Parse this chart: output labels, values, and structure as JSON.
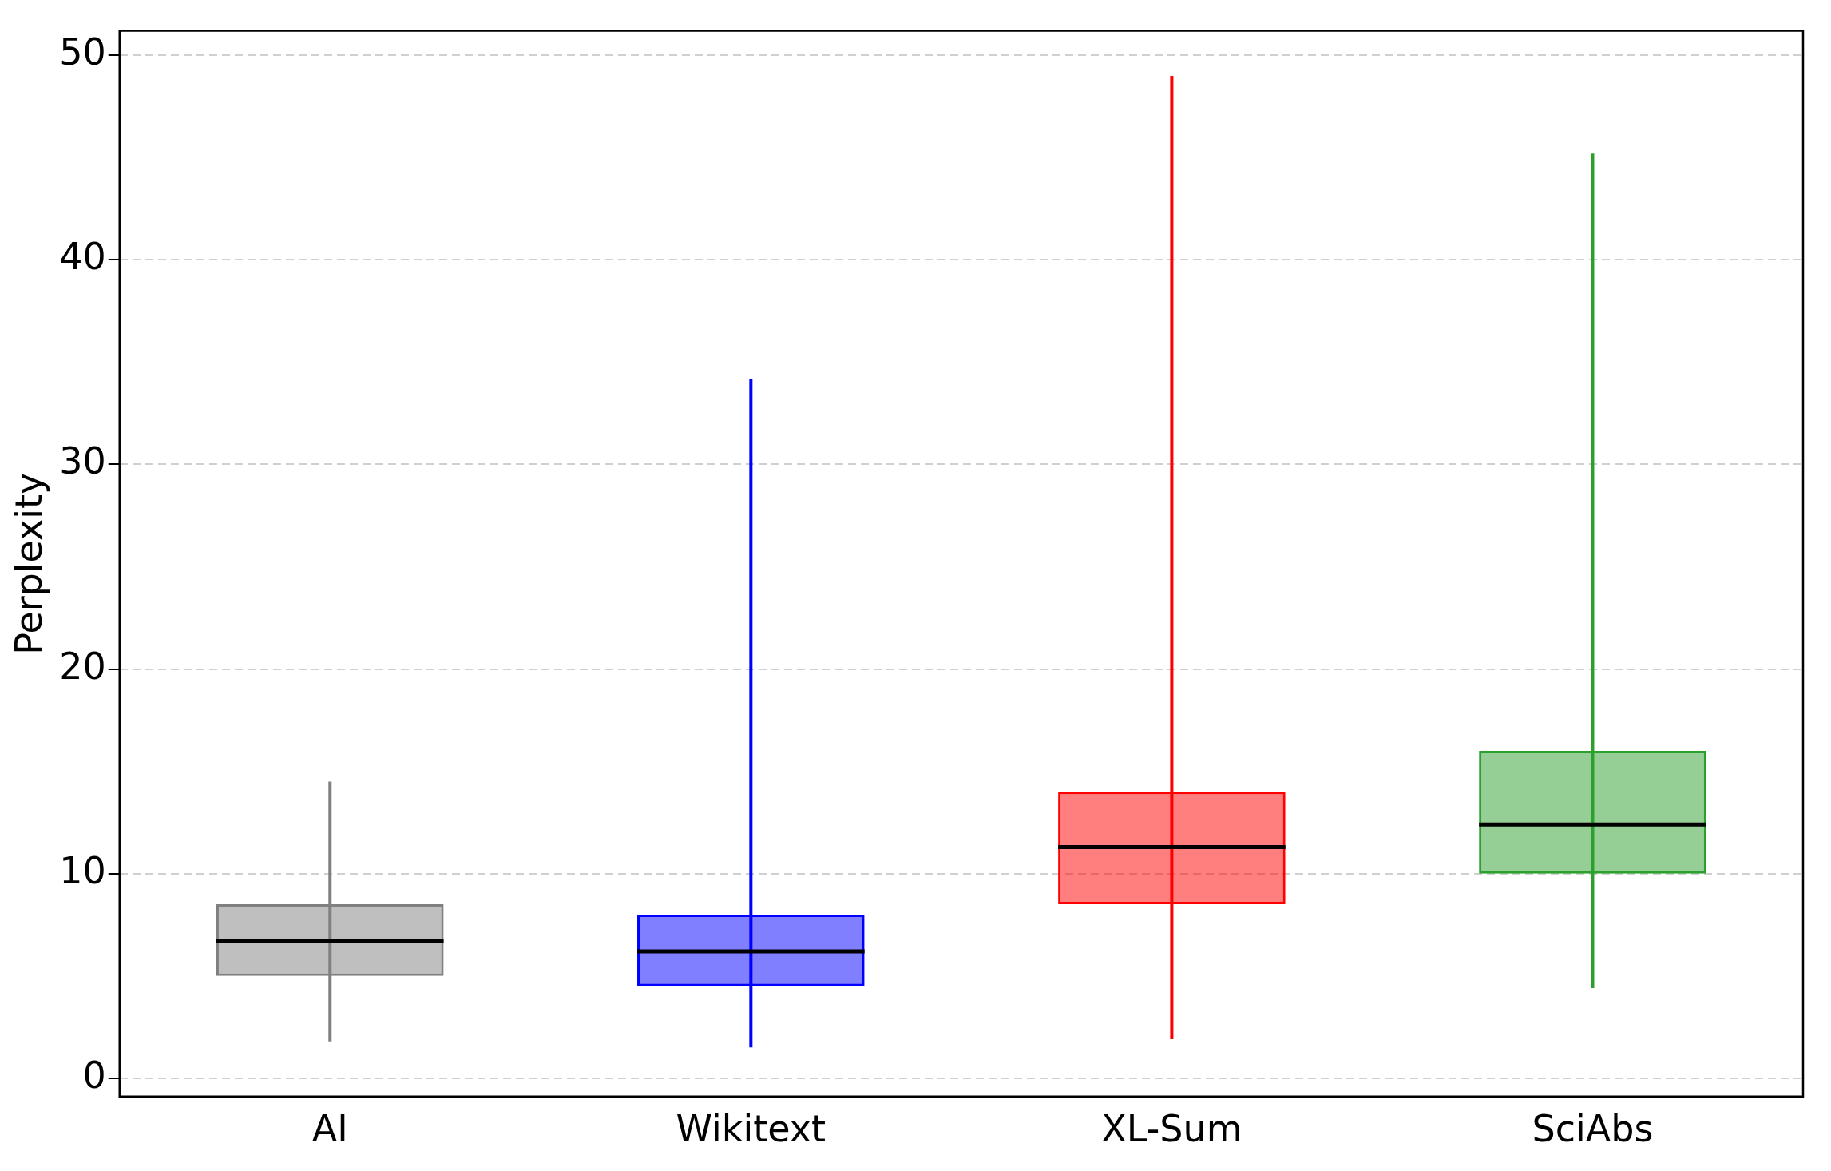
{
  "chart_data": {
    "type": "box",
    "ylabel": "Perplexity",
    "categories": [
      "AI",
      "Wikitext",
      "XL-Sum",
      "SciAbs"
    ],
    "boxes": [
      {
        "low": 1.8,
        "q1": 5,
        "median": 6.7,
        "q3": 8.5,
        "high": 14.5
      },
      {
        "low": 1.5,
        "q1": 4.5,
        "median": 6.2,
        "q3": 8,
        "high": 34.2
      },
      {
        "low": 1.9,
        "q1": 8.5,
        "median": 11.3,
        "q3": 14,
        "high": 49
      },
      {
        "low": 4.4,
        "q1": 10,
        "median": 12.4,
        "q3": 16,
        "high": 45.2
      }
    ],
    "colors": [
      "#808080",
      "#0000ff",
      "#ff0000",
      "#2ca02c"
    ],
    "ylim": [
      -0.9,
      51.2
    ],
    "yticks": [
      0,
      10,
      20,
      30,
      40,
      50
    ],
    "grid": "y"
  }
}
